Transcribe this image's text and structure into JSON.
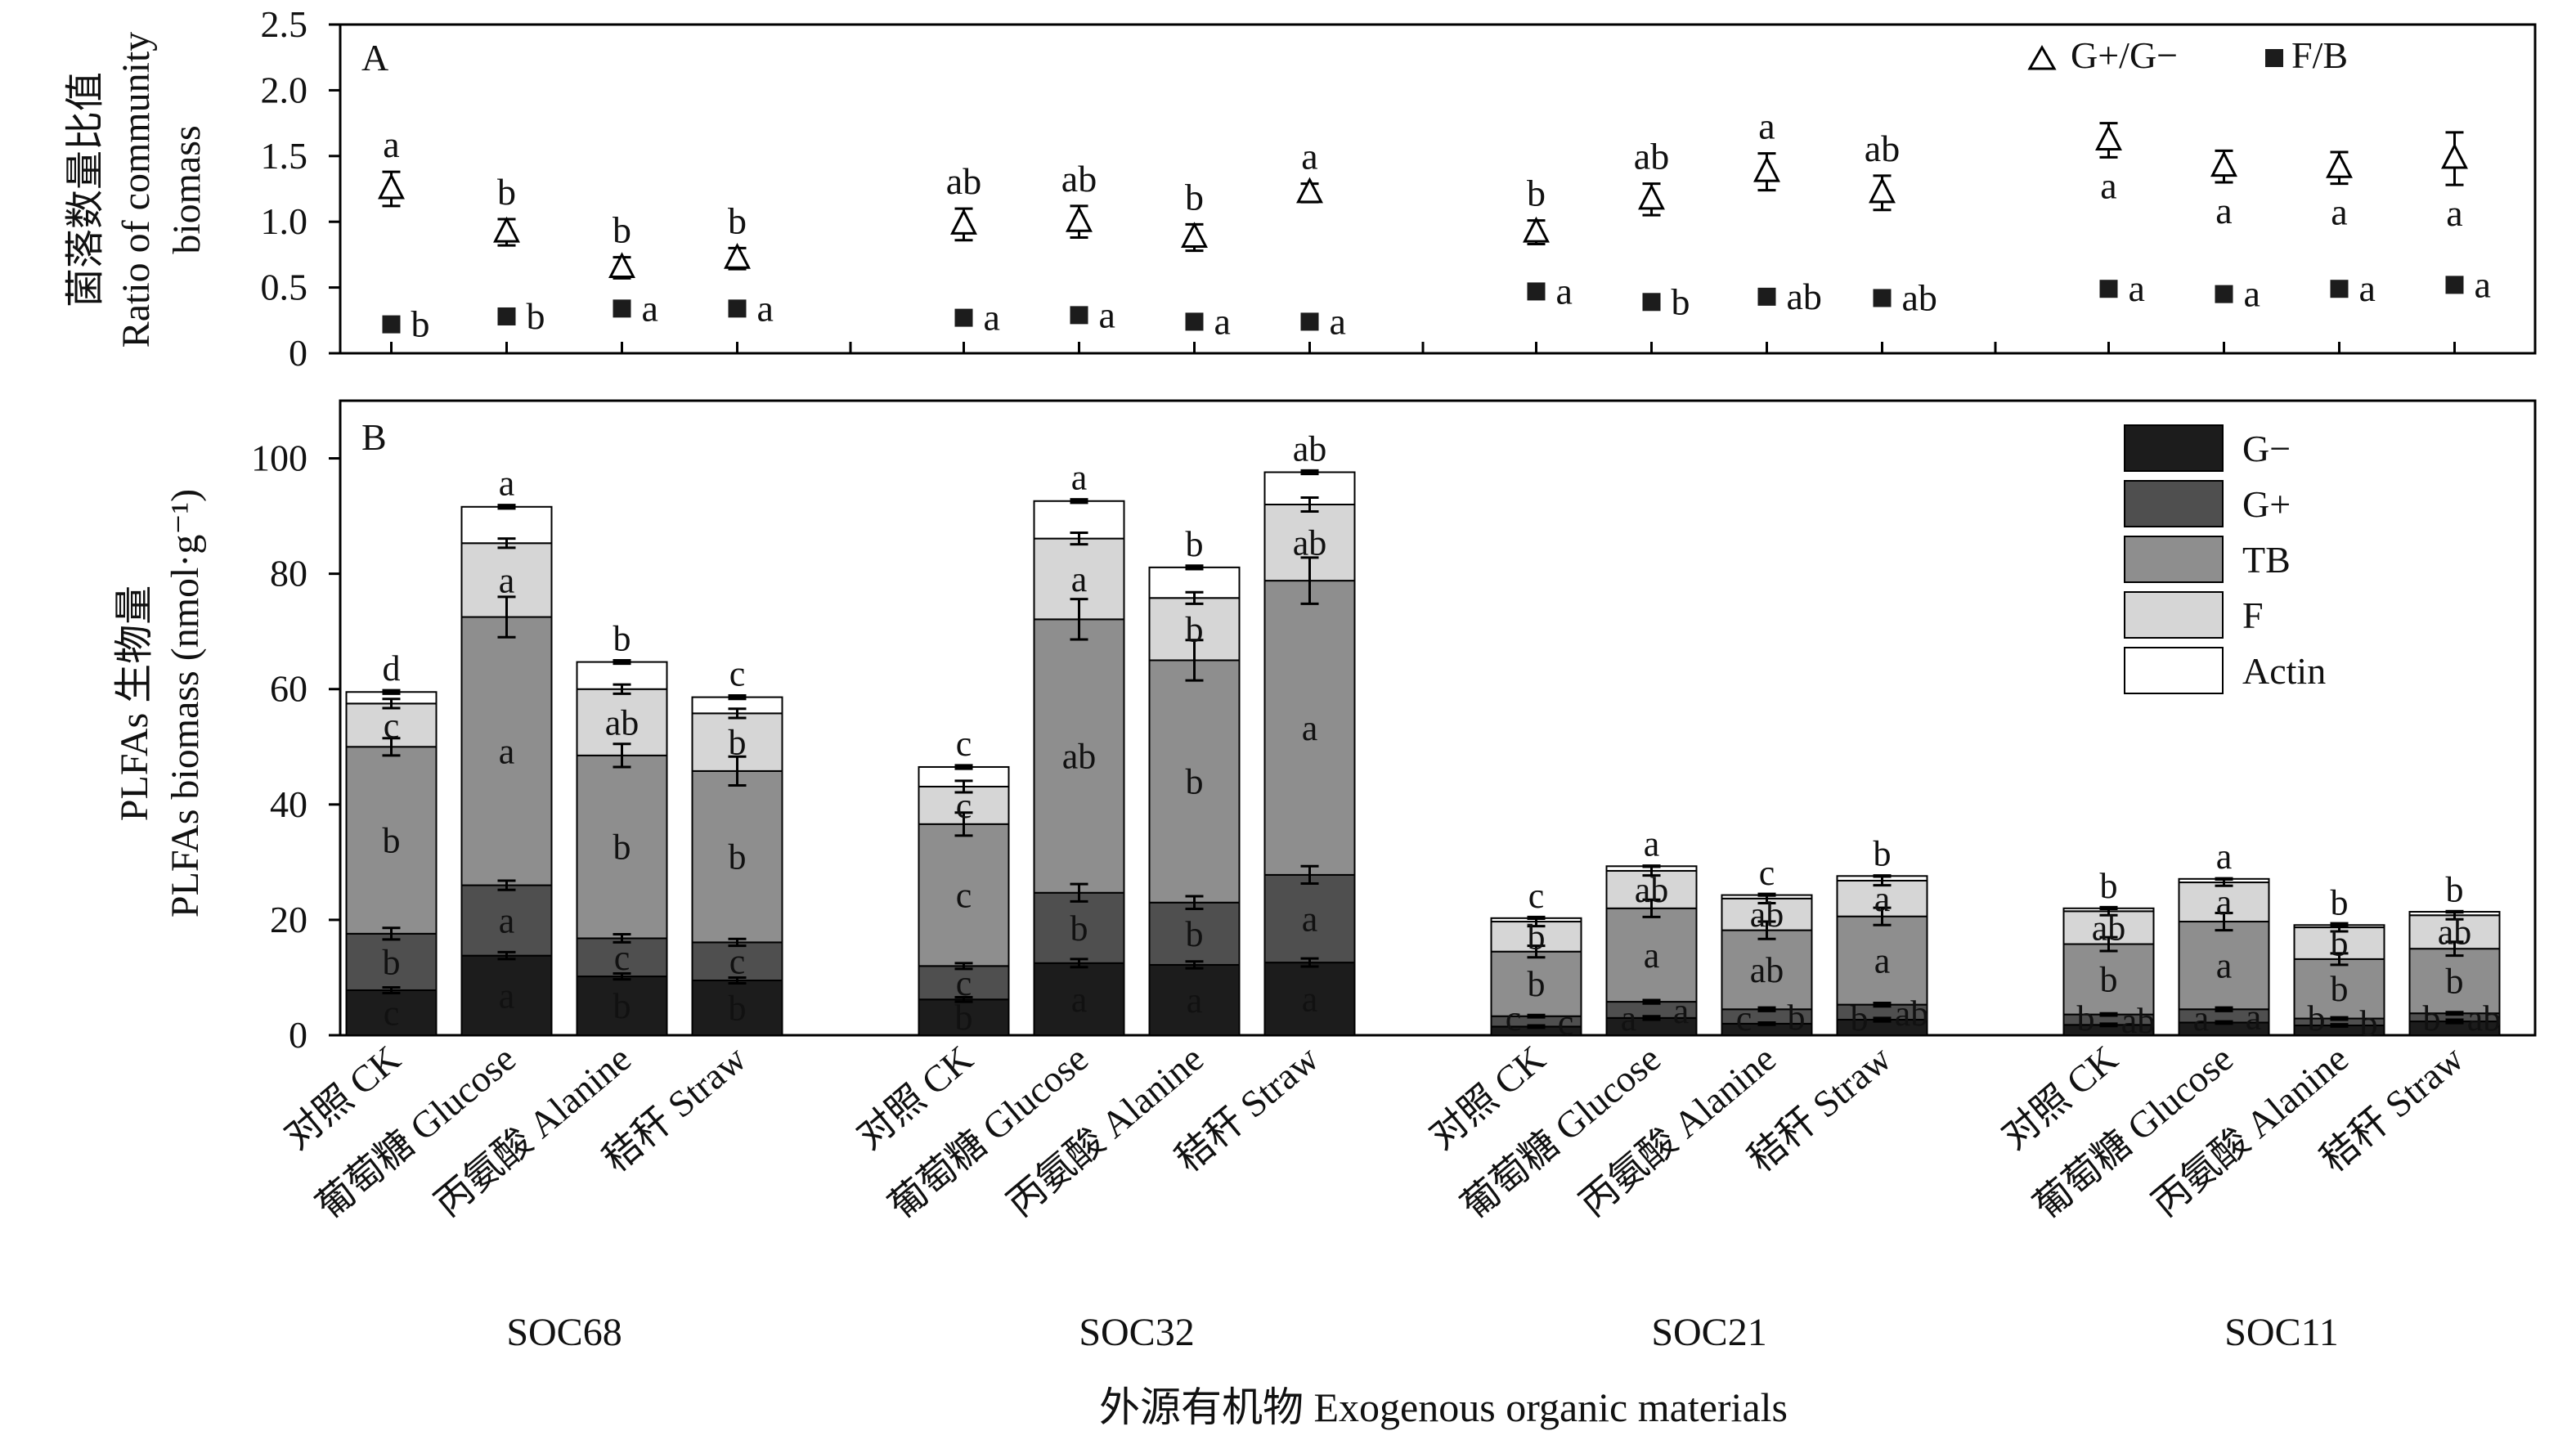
{
  "colors": {
    "g_neg": "#1c1c1c",
    "g_pos": "#4f4f4f",
    "tb": "#8e8e8e",
    "f": "#d6d6d6",
    "actin": "#ffffff",
    "axis": "#000000"
  },
  "x_axis_title": "外源有机物 Exogenous organic materials",
  "groups": [
    "SOC68",
    "SOC32",
    "SOC21",
    "SOC11"
  ],
  "treatments": [
    "对照 CK",
    "葡萄糖 Glucose",
    "丙氨酸 Alanine",
    "秸秆 Straw"
  ],
  "chart_data": [
    {
      "type": "scatter",
      "panel_label": "A",
      "ylabel": [
        "菌落数量比值",
        "Ratio of community",
        "biomass"
      ],
      "ylim": [
        0,
        2.5
      ],
      "yticks": [
        0,
        0.5,
        1.0,
        1.5,
        2.0,
        2.5
      ],
      "ytick_labels": [
        "0",
        "0.5",
        "1.0",
        "1.5",
        "2.0",
        "2.5"
      ],
      "legend": {
        "position": "top-right",
        "entries": [
          "G+/G−",
          "F/B"
        ]
      },
      "series": [
        {
          "name": "G+/G−",
          "marker": "open-triangle",
          "values": [
            1.25,
            0.92,
            0.65,
            0.72,
            0.98,
            1.0,
            0.88,
            1.22,
            0.92,
            1.17,
            1.38,
            1.22,
            1.62,
            1.42,
            1.41,
            1.48
          ],
          "errors": [
            0.13,
            0.1,
            0.08,
            0.08,
            0.12,
            0.12,
            0.1,
            0.07,
            0.09,
            0.12,
            0.14,
            0.13,
            0.13,
            0.12,
            0.12,
            0.2
          ],
          "letters": [
            "a",
            "b",
            "b",
            "b",
            "ab",
            "ab",
            "b",
            "a",
            "b",
            "ab",
            "a",
            "ab",
            "a",
            "a",
            "a",
            "a"
          ],
          "letter_pos": [
            "above",
            "above",
            "above",
            "above",
            "above",
            "above",
            "above",
            "above",
            "above",
            "above",
            "above",
            "above",
            "below",
            "below",
            "below",
            "below"
          ]
        },
        {
          "name": "F/B",
          "marker": "filled-square",
          "values": [
            0.22,
            0.28,
            0.34,
            0.34,
            0.27,
            0.29,
            0.24,
            0.24,
            0.47,
            0.39,
            0.43,
            0.42,
            0.49,
            0.45,
            0.49,
            0.52
          ],
          "letters": [
            "b",
            "b",
            "a",
            "a",
            "a",
            "a",
            "a",
            "a",
            "a",
            "b",
            "ab",
            "ab",
            "a",
            "a",
            "a",
            "a"
          ]
        }
      ]
    },
    {
      "type": "bar",
      "stacked": true,
      "panel_label": "B",
      "ylabel": [
        "PLFAs 生物量",
        "PLFAs biomass (nmol·g⁻¹)"
      ],
      "ylim": [
        0,
        110
      ],
      "yticks": [
        0,
        20,
        40,
        60,
        80,
        100
      ],
      "ytick_labels": [
        "0",
        "20",
        "40",
        "60",
        "80",
        "100"
      ],
      "legend": {
        "position": "top-right",
        "entries": [
          "G−",
          "G+",
          "TB",
          "F",
          "Actin"
        ]
      },
      "series": [
        {
          "name": "G−",
          "color_key": "g_neg",
          "letter_color": "#ffffff",
          "values": [
            7.8,
            13.8,
            10.2,
            9.5,
            6.2,
            12.5,
            12.2,
            12.6,
            1.5,
            3.0,
            2.0,
            2.7,
            1.8,
            2.2,
            1.7,
            2.4
          ],
          "errors": [
            0.5,
            0.6,
            0.5,
            0.5,
            0.4,
            0.7,
            0.6,
            0.7,
            0.2,
            0.3,
            0.2,
            0.3,
            0.2,
            0.2,
            0.2,
            0.3
          ],
          "letters": [
            "c",
            "a",
            "b",
            "b",
            "b",
            "a",
            "a",
            "a",
            "c",
            "a",
            "c",
            "b",
            "b",
            "a",
            "b",
            "b"
          ]
        },
        {
          "name": "G+",
          "color_key": "g_pos",
          "letter_color": "#ffffff",
          "values": [
            9.8,
            12.2,
            6.6,
            6.6,
            5.8,
            12.2,
            10.8,
            15.2,
            1.8,
            2.8,
            2.5,
            2.6,
            1.8,
            2.3,
            1.2,
            1.4
          ],
          "errors": [
            1.0,
            0.8,
            0.7,
            0.6,
            0.5,
            1.5,
            1.1,
            1.5,
            0.2,
            0.3,
            0.3,
            0.3,
            0.2,
            0.3,
            0.2,
            0.2
          ],
          "letters": [
            "b",
            "a",
            "c",
            "c",
            "c",
            "b",
            "b",
            "a",
            "c",
            "a",
            "b",
            "ab",
            "ab",
            "a",
            "b",
            "ab"
          ]
        },
        {
          "name": "TB",
          "color_key": "tb",
          "letter_color": "#ffffff",
          "values": [
            32.4,
            46.5,
            31.7,
            29.7,
            24.6,
            47.4,
            42.0,
            51.0,
            11.2,
            16.2,
            13.7,
            15.3,
            12.2,
            15.2,
            10.3,
            11.2
          ],
          "errors": [
            1.5,
            3.5,
            2.0,
            2.5,
            2.0,
            3.5,
            3.5,
            4.0,
            1.0,
            1.5,
            1.5,
            1.5,
            1.2,
            1.5,
            1.0,
            1.2
          ],
          "letters": [
            "b",
            "a",
            "b",
            "b",
            "c",
            "ab",
            "b",
            "a",
            "b",
            "a",
            "ab",
            "a",
            "b",
            "a",
            "b",
            "b"
          ]
        },
        {
          "name": "F",
          "color_key": "f",
          "letter_color": "#ffffff",
          "values": [
            7.5,
            12.8,
            11.5,
            10.0,
            6.5,
            14.0,
            10.8,
            13.2,
            5.2,
            6.5,
            5.5,
            6.2,
            5.7,
            6.8,
            5.5,
            5.8
          ],
          "errors": [
            0.8,
            0.8,
            0.8,
            0.8,
            1.0,
            1.0,
            1.0,
            1.2,
            0.8,
            0.8,
            0.8,
            0.8,
            0.7,
            0.6,
            0.7,
            0.7
          ],
          "letters": [
            "c",
            "a",
            "ab",
            "b",
            "c",
            "a",
            "b",
            "ab",
            "b",
            "ab",
            "ab",
            "a",
            "ab",
            "a",
            "b",
            "ab"
          ]
        },
        {
          "name": "Actin",
          "color_key": "actin",
          "letter_color": "#111111",
          "values": [
            2.0,
            6.3,
            4.7,
            2.8,
            3.4,
            6.5,
            5.3,
            5.6,
            0.6,
            0.8,
            0.6,
            0.8,
            0.5,
            0.6,
            0.4,
            0.6
          ],
          "errors": [
            0.3,
            0.3,
            0.3,
            0.3,
            0.3,
            0.3,
            0.3,
            0.3,
            0.1,
            0.1,
            0.1,
            0.1,
            0.1,
            0.1,
            0.1,
            0.1
          ],
          "letters": [
            "d",
            "a",
            "b",
            "c",
            "c",
            "a",
            "b",
            "ab",
            "c",
            "a",
            "c",
            "b",
            "b",
            "a",
            "b",
            "b"
          ]
        }
      ]
    }
  ]
}
